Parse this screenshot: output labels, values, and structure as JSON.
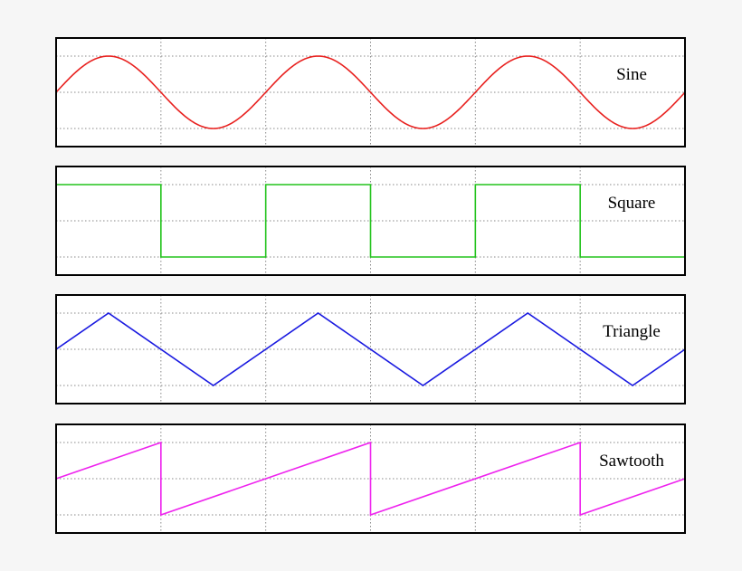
{
  "colors": {
    "background": "#f6f6f6",
    "panel_fill": "#ffffff",
    "frame": "#000000",
    "grid": "#888888"
  },
  "grid": {
    "columns": 6,
    "rows": 4,
    "style": "dotted"
  },
  "waves": [
    {
      "label": "Sine",
      "shape": "sine",
      "color": "#e8201e",
      "cycles": 3
    },
    {
      "label": "Square",
      "shape": "square",
      "color": "#22c31c",
      "cycles": 3
    },
    {
      "label": "Triangle",
      "shape": "triangle",
      "color": "#1a1ae0",
      "cycles": 3
    },
    {
      "label": "Sawtooth",
      "shape": "sawtooth",
      "color": "#ee22ee",
      "cycles": 3
    }
  ]
}
